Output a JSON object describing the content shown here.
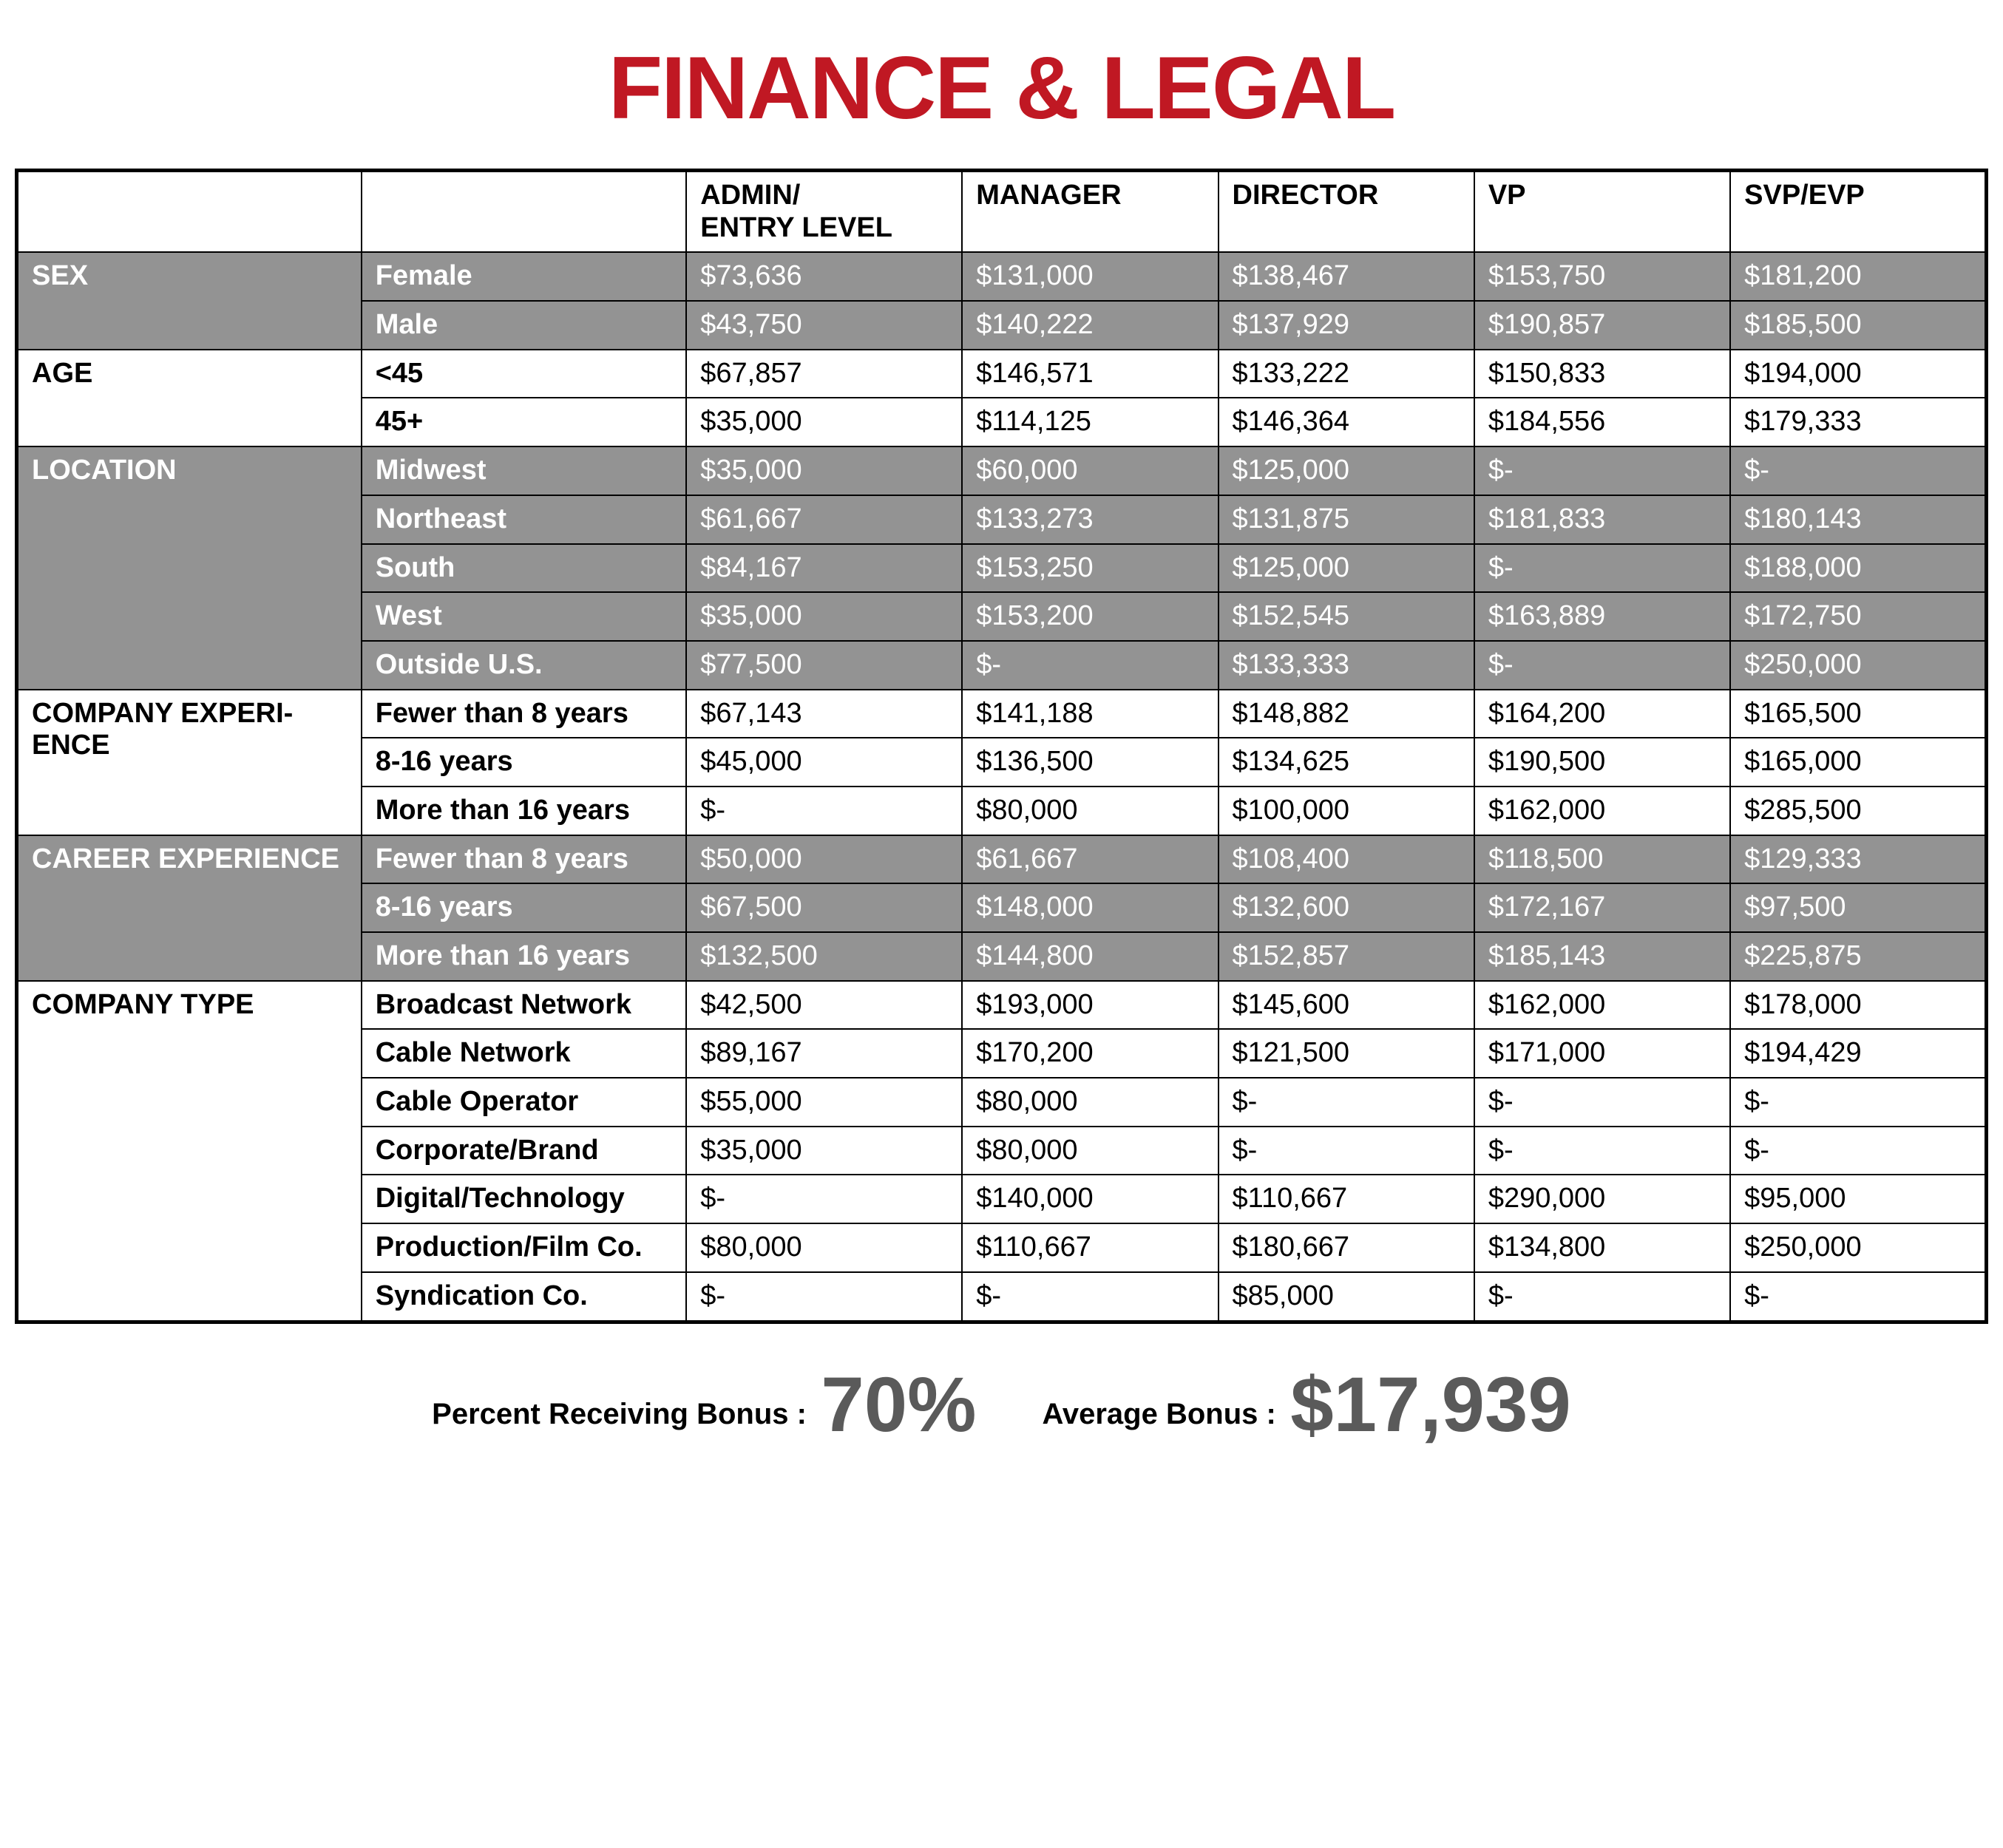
{
  "title": {
    "text": "FINANCE & LEGAL",
    "color": "#c01823"
  },
  "table": {
    "border_color": "#000000",
    "gray_bg": "#939393",
    "columns": [
      "",
      "",
      "ADMIN/\nENTRY LEVEL",
      "MANAGER",
      "DIRECTOR",
      "VP",
      "SVP/EVP"
    ],
    "groups": [
      {
        "label": "SEX",
        "shade": "gray",
        "rows": [
          {
            "subcat": "Female",
            "cells": [
              "$73,636",
              "$131,000",
              "$138,467",
              "$153,750",
              "$181,200"
            ]
          },
          {
            "subcat": "Male",
            "cells": [
              "$43,750",
              "$140,222",
              "$137,929",
              "$190,857",
              "$185,500"
            ]
          }
        ]
      },
      {
        "label": "AGE",
        "shade": "white",
        "rows": [
          {
            "subcat": "<45",
            "cells": [
              "$67,857",
              "$146,571",
              "$133,222",
              "$150,833",
              "$194,000"
            ]
          },
          {
            "subcat": "45+",
            "cells": [
              "$35,000",
              "$114,125",
              "$146,364",
              "$184,556",
              "$179,333"
            ]
          }
        ]
      },
      {
        "label": "LOCATION",
        "shade": "gray",
        "rows": [
          {
            "subcat": "Midwest",
            "cells": [
              "$35,000",
              "$60,000",
              "$125,000",
              "$-",
              "$-"
            ]
          },
          {
            "subcat": "Northeast",
            "cells": [
              "$61,667",
              "$133,273",
              "$131,875",
              "$181,833",
              "$180,143"
            ]
          },
          {
            "subcat": "South",
            "cells": [
              "$84,167",
              "$153,250",
              "$125,000",
              "$-",
              "$188,000"
            ]
          },
          {
            "subcat": "West",
            "cells": [
              "$35,000",
              "$153,200",
              "$152,545",
              "$163,889",
              "$172,750"
            ]
          },
          {
            "subcat": "Outside U.S.",
            "cells": [
              "$77,500",
              "$-",
              "$133,333",
              "$-",
              "$250,000"
            ]
          }
        ]
      },
      {
        "label": "COMPANY EXPERI-\nENCE",
        "shade": "white",
        "rows": [
          {
            "subcat": "Fewer than 8 years",
            "cells": [
              "$67,143",
              "$141,188",
              "$148,882",
              "$164,200",
              "$165,500"
            ]
          },
          {
            "subcat": "8-16 years",
            "cells": [
              "$45,000",
              "$136,500",
              "$134,625",
              "$190,500",
              "$165,000"
            ]
          },
          {
            "subcat": "More than 16 years",
            "cells": [
              "$-",
              "$80,000",
              "$100,000",
              "$162,000",
              "$285,500"
            ]
          }
        ]
      },
      {
        "label": "CAREER EXPERIENCE",
        "shade": "gray",
        "rows": [
          {
            "subcat": "Fewer than 8 years",
            "cells": [
              "$50,000",
              "$61,667",
              "$108,400",
              "$118,500",
              "$129,333"
            ]
          },
          {
            "subcat": "8-16 years",
            "cells": [
              "$67,500",
              "$148,000",
              "$132,600",
              "$172,167",
              "$97,500"
            ]
          },
          {
            "subcat": "More than 16 years",
            "cells": [
              "$132,500",
              "$144,800",
              "$152,857",
              "$185,143",
              "$225,875"
            ]
          }
        ]
      },
      {
        "label": "COMPANY TYPE",
        "shade": "white",
        "rows": [
          {
            "subcat": "Broadcast Network",
            "cells": [
              "$42,500",
              "$193,000",
              "$145,600",
              "$162,000",
              "$178,000"
            ]
          },
          {
            "subcat": "Cable Network",
            "cells": [
              "$89,167",
              "$170,200",
              "$121,500",
              "$171,000",
              "$194,429"
            ]
          },
          {
            "subcat": "Cable Operator",
            "cells": [
              "$55,000",
              "$80,000",
              "$-",
              "$-",
              "$-"
            ]
          },
          {
            "subcat": "Corporate/Brand",
            "cells": [
              "$35,000",
              "$80,000",
              "$-",
              "$-",
              "$-"
            ]
          },
          {
            "subcat": "Digital/Technology",
            "cells": [
              "$-",
              "$140,000",
              "$110,667",
              "$290,000",
              "$95,000"
            ]
          },
          {
            "subcat": "Production/Film Co.",
            "cells": [
              "$80,000",
              "$110,667",
              "$180,667",
              "$134,800",
              "$250,000"
            ]
          },
          {
            "subcat": "Syndication Co.",
            "cells": [
              "$-",
              "$-",
              "$85,000",
              "$-",
              "$-"
            ]
          }
        ]
      }
    ]
  },
  "footer": {
    "pct_label": "Percent Receiving Bonus :",
    "pct_value": "70%",
    "avg_label": "Average Bonus :",
    "avg_value": "$17,939",
    "big_color": "#5a5a5a"
  }
}
